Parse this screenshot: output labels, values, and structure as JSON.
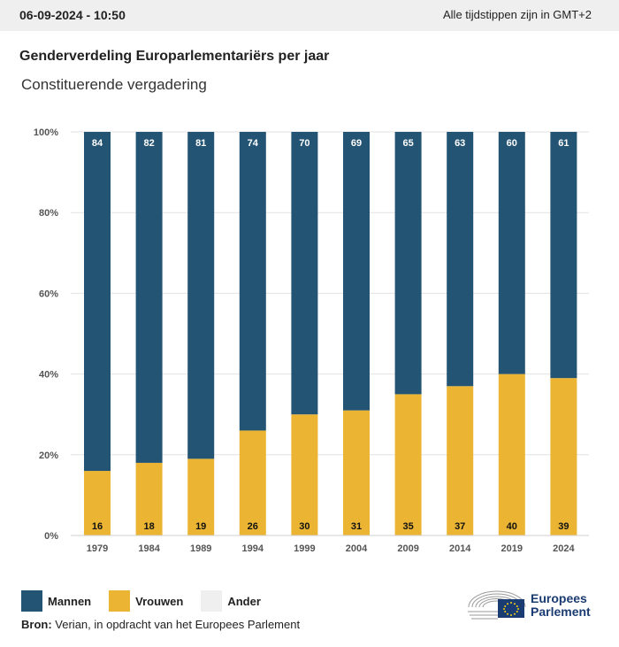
{
  "header": {
    "datetime": "06-09-2024 - 10:50",
    "timezone_note": "Alle tijdstippen zijn in GMT+2"
  },
  "title": "Genderverdeling Europarlementariërs per jaar",
  "subtitle": "Constituerende vergadering",
  "legend": [
    {
      "label": "Mannen",
      "color": "#245473"
    },
    {
      "label": "Vrouwen",
      "color": "#ebb533"
    },
    {
      "label": "Ander",
      "color": "#efefef"
    }
  ],
  "source": {
    "label": "Bron:",
    "text": "Verian, in opdracht van het Europees Parlement"
  },
  "logo": {
    "line1": "Europees",
    "line2": "Parlement"
  },
  "chart_data": {
    "type": "bar",
    "stacked": true,
    "title": "Genderverdeling Europarlementariërs per jaar",
    "subtitle": "Constituerende vergadering",
    "categories": [
      "1979",
      "1984",
      "1989",
      "1994",
      "1999",
      "2004",
      "2009",
      "2014",
      "2019",
      "2024"
    ],
    "series": [
      {
        "name": "Vrouwen",
        "color": "#ebb533",
        "values": [
          16,
          18,
          19,
          26,
          30,
          31,
          35,
          37,
          40,
          39
        ]
      },
      {
        "name": "Mannen",
        "color": "#245473",
        "values": [
          84,
          82,
          81,
          74,
          70,
          69,
          65,
          63,
          60,
          61
        ]
      }
    ],
    "ylim": [
      0,
      100
    ],
    "yticks": [
      "0%",
      "20%",
      "40%",
      "60%",
      "80%",
      "100%"
    ],
    "grid": true,
    "legend_position": "bottom-left"
  }
}
